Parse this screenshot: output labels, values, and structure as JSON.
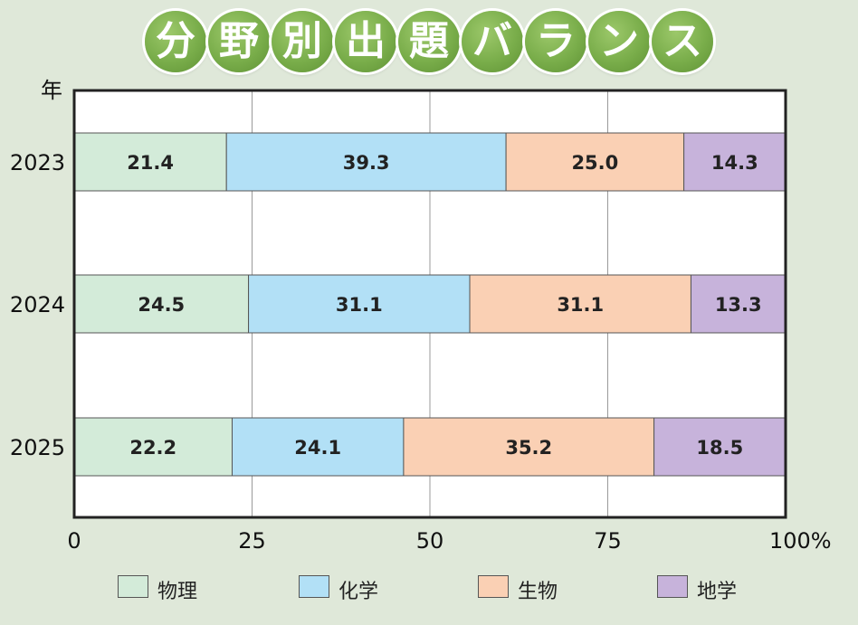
{
  "title_chars": [
    "分",
    "野",
    "別",
    "出",
    "題",
    "バ",
    "ラ",
    "ン",
    "ス"
  ],
  "chart_data": {
    "type": "bar",
    "orientation": "horizontal",
    "stacked": true,
    "title": "分野別出題バランス",
    "ylabel": "年",
    "categories": [
      "2023",
      "2024",
      "2025"
    ],
    "series": [
      {
        "name": "物理",
        "color": "#d3ebd9",
        "values": [
          21.4,
          24.5,
          22.2
        ]
      },
      {
        "name": "化学",
        "color": "#b2e0f6",
        "values": [
          39.3,
          31.1,
          24.1
        ]
      },
      {
        "name": "生物",
        "color": "#fad0b4",
        "values": [
          25.0,
          31.1,
          35.2
        ]
      },
      {
        "name": "地学",
        "color": "#c7b3db",
        "values": [
          14.3,
          13.3,
          18.5
        ]
      }
    ],
    "xlim": [
      0,
      100
    ],
    "xticks": [
      "0",
      "25",
      "50",
      "75",
      "100%"
    ],
    "grid": true,
    "legend_position": "bottom"
  }
}
